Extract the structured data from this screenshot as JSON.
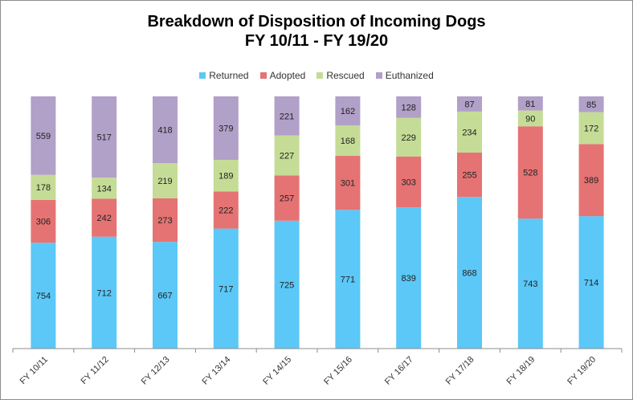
{
  "chart_data": {
    "type": "bar",
    "stacked": true,
    "title_line1": "Breakdown of Disposition of Incoming Dogs",
    "title_line2": "FY 10/11 - FY 19/20",
    "legend_position": "top",
    "grid": false,
    "categories": [
      "FY 10/11",
      "FY 11/12",
      "FY 12/13",
      "FY 13/14",
      "FY 14/15",
      "FY 15/16",
      "FY 16/17",
      "FY 17/18",
      "FY 18/19",
      "FY 19/20"
    ],
    "series": [
      {
        "name": "Returned",
        "color": "#5bc8f7",
        "values": [
          754,
          712,
          667,
          717,
          725,
          771,
          839,
          868,
          743,
          714
        ]
      },
      {
        "name": "Adopted",
        "color": "#e57373",
        "values": [
          306,
          242,
          273,
          222,
          257,
          301,
          303,
          255,
          528,
          389
        ]
      },
      {
        "name": "Rescued",
        "color": "#c5dc96",
        "values": [
          178,
          134,
          219,
          189,
          227,
          168,
          229,
          234,
          90,
          172
        ]
      },
      {
        "name": "Euthanized",
        "color": "#b1a0c8",
        "values": [
          559,
          517,
          418,
          379,
          221,
          162,
          128,
          87,
          81,
          85
        ]
      }
    ]
  }
}
